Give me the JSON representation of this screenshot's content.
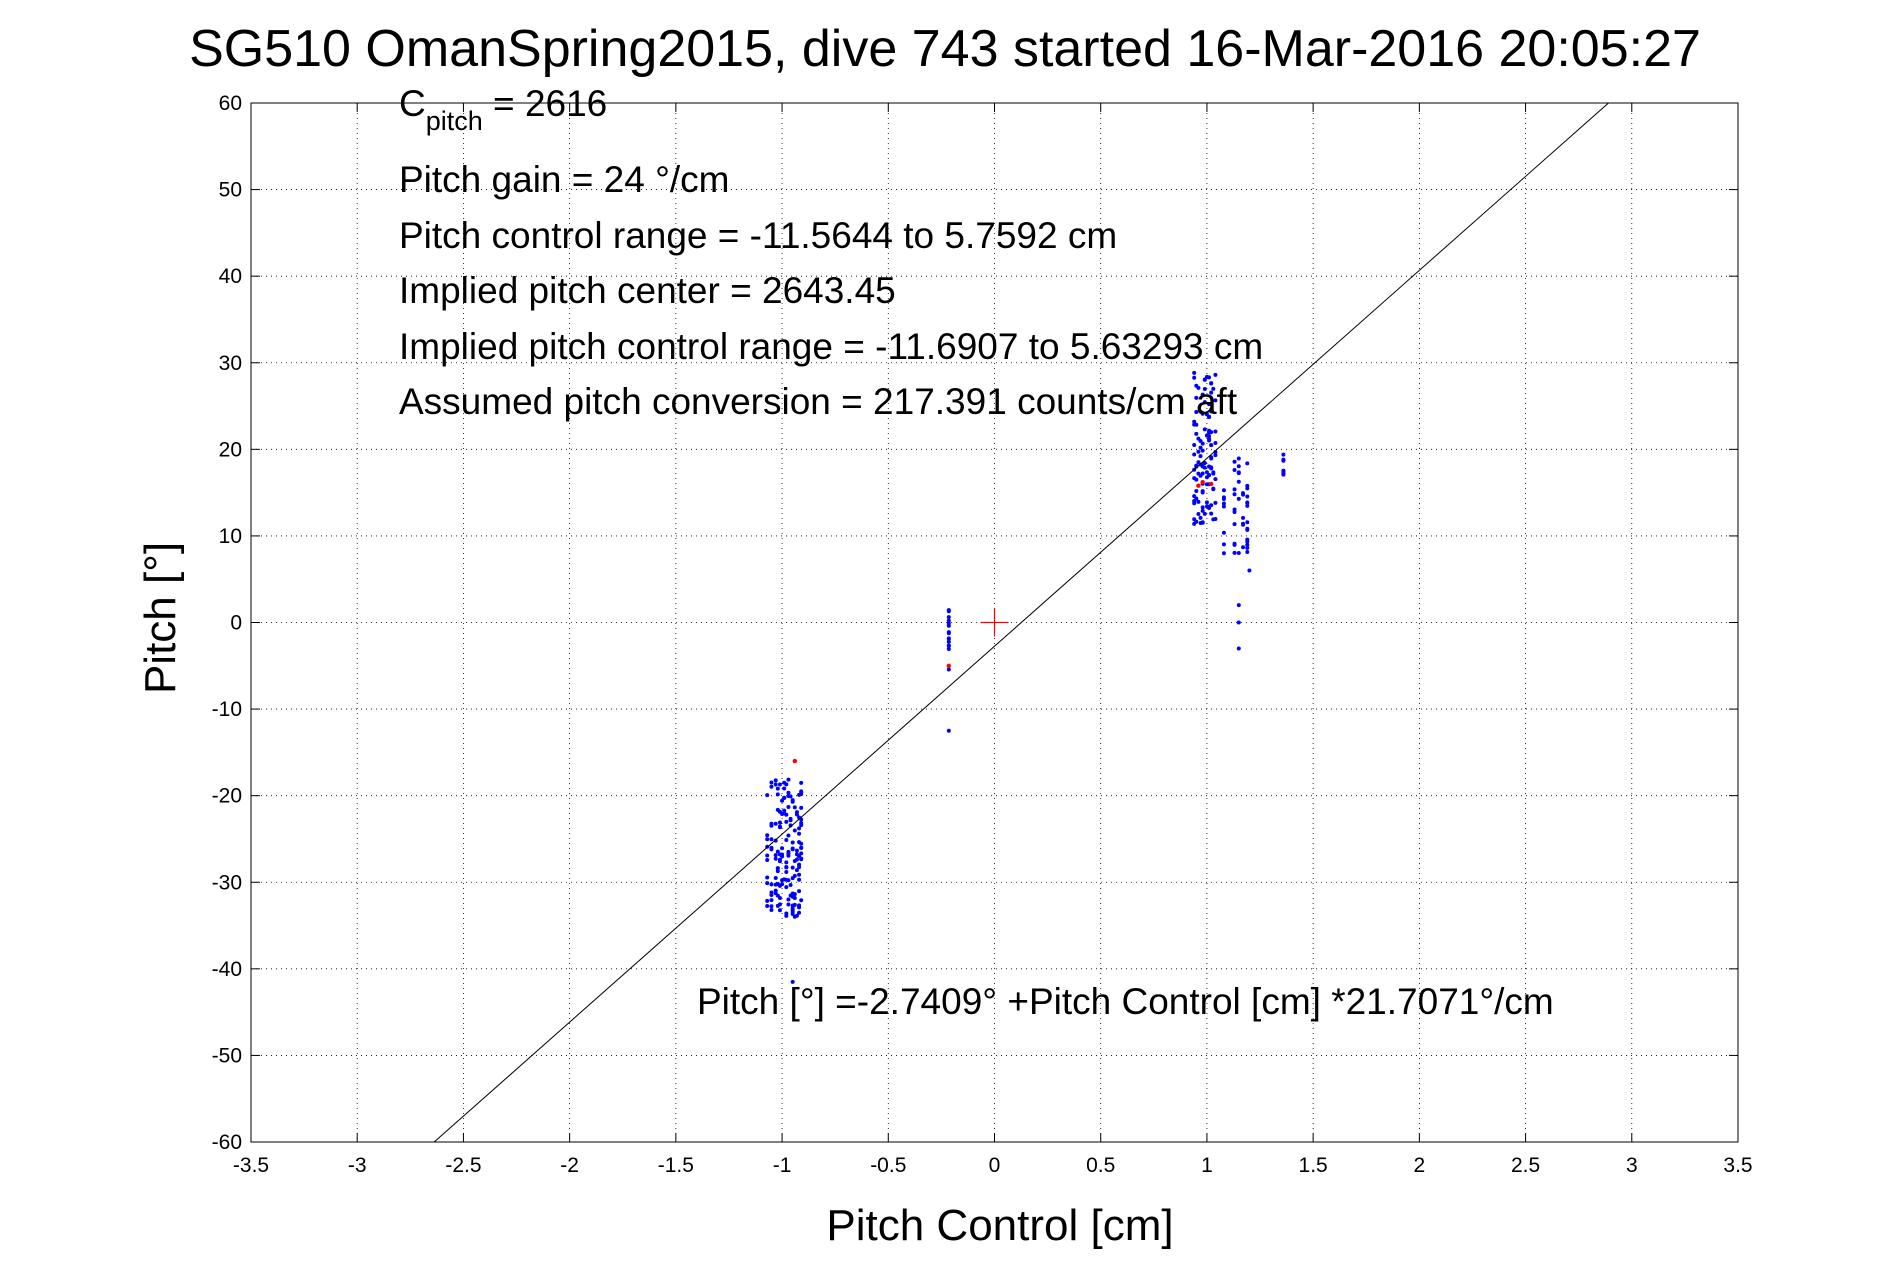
{
  "chart_data": {
    "type": "scatter",
    "title": "SG510 OmanSpring2015, dive 743 started 16-Mar-2016 20:05:27",
    "xlabel": "Pitch Control [cm]",
    "ylabel": "Pitch [°]",
    "xlim": [
      -3.5,
      3.5
    ],
    "ylim": [
      -60,
      60
    ],
    "xticks": [
      -3.5,
      -3,
      -2.5,
      -2,
      -1.5,
      -1,
      -0.5,
      0,
      0.5,
      1,
      1.5,
      2,
      2.5,
      3,
      3.5
    ],
    "yticks": [
      -60,
      -50,
      -40,
      -30,
      -20,
      -10,
      0,
      10,
      20,
      30,
      40,
      50,
      60
    ],
    "xtick_labels": [
      "-3.5",
      "-3",
      "-2.5",
      "-2",
      "-1.5",
      "-1",
      "-0.5",
      "0",
      "0.5",
      "1",
      "1.5",
      "2",
      "2.5",
      "3",
      "3.5"
    ],
    "ytick_labels": [
      "-60",
      "-50",
      "-40",
      "-30",
      "-20",
      "-10",
      "0",
      "10",
      "20",
      "30",
      "40",
      "50",
      "60"
    ],
    "grid": true,
    "colors": {
      "main_points": "#0000ff",
      "flagged_points": "#ff0000",
      "center_marker": "#ff0000",
      "fit_line": "#000000"
    },
    "annotations": {
      "c_pitch_symbol": "C",
      "c_pitch_subscript": "pitch",
      "c_pitch_value": " = 2616",
      "pitch_gain": "Pitch gain = 24 °/cm",
      "pitch_control_range": "Pitch control range = -11.5644 to 5.7592 cm",
      "implied_pitch_center": "Implied pitch center = 2643.45",
      "implied_pitch_control_range": "Implied pitch control range = -11.6907 to 5.63293 cm",
      "assumed_pitch_conversion": "Assumed pitch conversion = 217.391 counts/cm aft",
      "fit_equation": "Pitch [°] =-2.7409° +Pitch Control [cm] *21.7071°/cm"
    },
    "fit_line": {
      "intercept": -2.7409,
      "slope": 21.7071
    },
    "center_marker": {
      "x": 0,
      "y": 0
    },
    "series": [
      {
        "color": "#0000ff",
        "clusters": [
          {
            "xs": [
              -1.07,
              -1.05,
              -1.03,
              -1.02,
              -1.01,
              -1.0,
              -0.99,
              -0.98,
              -0.97,
              -0.96,
              -0.95,
              -0.94,
              -0.93,
              -0.92,
              -0.91
            ],
            "ymin": -34,
            "ymax": -18
          },
          {
            "xs": [
              -0.215
            ],
            "ymin": -6,
            "ymax": 1.5
          },
          {
            "xs": [
              0.94,
              0.95,
              0.96,
              0.97,
              0.98,
              0.99,
              1.0,
              1.01,
              1.02,
              1.03,
              1.04
            ],
            "ymin": 11,
            "ymax": 29
          },
          {
            "xs": [
              1.08,
              1.13,
              1.15,
              1.17,
              1.19
            ],
            "ymin": 8,
            "ymax": 19
          },
          {
            "xs": [
              1.36
            ],
            "ymin": 16.5,
            "ymax": 23.5
          }
        ],
        "outliers": [
          {
            "x": -0.215,
            "y": -12.5
          },
          {
            "x": 1.15,
            "y": 2
          },
          {
            "x": 1.15,
            "y": 0
          },
          {
            "x": 1.15,
            "y": -3
          },
          {
            "x": 1.2,
            "y": 6
          },
          {
            "x": -0.95,
            "y": -41.5
          }
        ]
      },
      {
        "color": "#ff0000",
        "points": [
          {
            "x": -0.94,
            "y": -16
          },
          {
            "x": -0.215,
            "y": -5
          },
          {
            "x": 0.96,
            "y": 15.8
          },
          {
            "x": 0.98,
            "y": 16.2
          },
          {
            "x": 1.02,
            "y": 16
          }
        ]
      }
    ]
  }
}
